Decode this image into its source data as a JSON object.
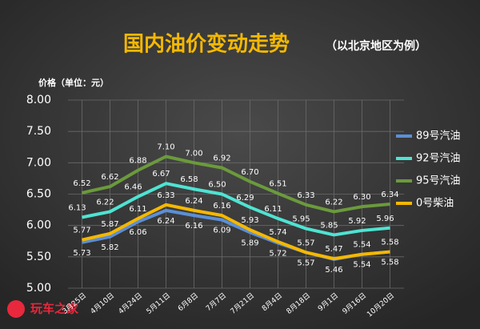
{
  "chart_data": {
    "type": "line",
    "title": "国内油价变动走势",
    "subtitle": "（以北京地区为例）",
    "y_label": "价格（单位：元）",
    "watermark": "玩车之家",
    "categories": [
      "3月25日",
      "4月10日",
      "4月24日",
      "5月11日",
      "6月8日",
      "7月7日",
      "7月21日",
      "8月4日",
      "8月18日",
      "9月1日",
      "9月16日",
      "10月20日"
    ],
    "series": [
      {
        "name": "89号汽油",
        "color": "#5b8fd6",
        "values": [
          5.73,
          5.82,
          6.06,
          6.24,
          6.16,
          6.09,
          5.89,
          5.72,
          5.57,
          5.46,
          5.54,
          5.58
        ],
        "value_labels": [
          "5.73",
          "5.82",
          "6.06",
          "6.24",
          "6.16",
          "6.09",
          "5.89",
          "5.72",
          "5.57",
          "5.46",
          "5.54",
          "5.58"
        ]
      },
      {
        "name": "92号汽油",
        "color": "#4fe3d2",
        "values": [
          6.13,
          6.22,
          6.46,
          6.67,
          6.58,
          6.5,
          6.29,
          6.11,
          5.95,
          5.85,
          5.92,
          5.96
        ],
        "value_labels": [
          "6.13",
          "6.22",
          "6.46",
          "6.67",
          "6.58",
          "6.50",
          "6.29",
          "6.11",
          "5.95",
          "5.85",
          "5.92",
          "5.96"
        ]
      },
      {
        "name": "95号汽油",
        "color": "#6b9a3c",
        "values": [
          6.52,
          6.62,
          6.88,
          7.1,
          7.0,
          6.92,
          6.7,
          6.51,
          6.33,
          6.22,
          6.3,
          6.34
        ],
        "value_labels": [
          "6.52",
          "6.62",
          "6.88",
          "7.10",
          "7.00",
          "6.92",
          "6.70",
          "6.51",
          "6.33",
          "6.22",
          "6.30",
          "6.34"
        ]
      },
      {
        "name": "0号柴油",
        "color": "#f5b800",
        "values": [
          5.77,
          5.87,
          6.11,
          6.33,
          6.24,
          6.16,
          5.93,
          5.74,
          5.57,
          5.47,
          5.54,
          5.58
        ],
        "value_labels": [
          "5.77",
          "5.87",
          "6.11",
          "6.33",
          "6.24",
          "6.16",
          "5.93",
          "5.74",
          "5.57",
          "5.47",
          "5.54",
          "5.58"
        ]
      }
    ],
    "ylim": [
      5,
      8
    ],
    "yticks": [
      {
        "value": 5,
        "label": "5.00"
      },
      {
        "value": 5.5,
        "label": "5.50"
      },
      {
        "value": 6,
        "label": "6.00"
      },
      {
        "value": 6.5,
        "label": "6.50"
      },
      {
        "value": 7,
        "label": "7.00"
      },
      {
        "value": 7.5,
        "label": "7.50"
      },
      {
        "value": 8,
        "label": "8.00"
      }
    ],
    "grid": true
  }
}
